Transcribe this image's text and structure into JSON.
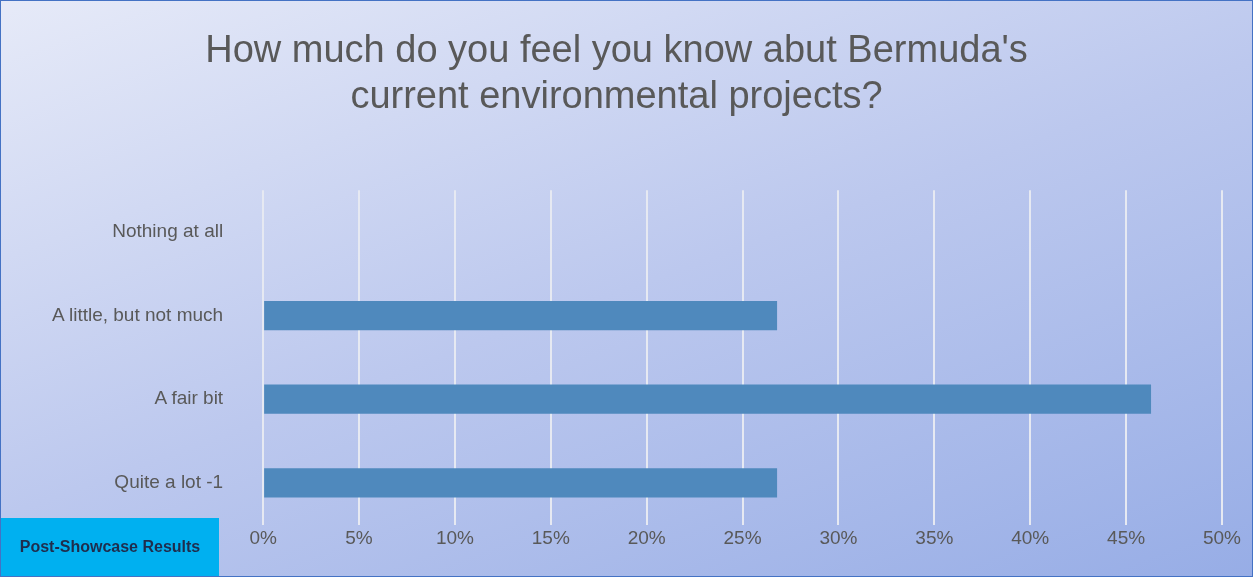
{
  "chart_data": {
    "type": "bar",
    "orientation": "horizontal",
    "title": "How much do you feel you know abut Bermuda's current environmental projects?",
    "categories": [
      "Nothing at all",
      "A little, but not much",
      "A fair bit",
      "Quite a lot -1"
    ],
    "values": [
      0,
      26.8,
      46.3,
      26.8
    ],
    "color": "#4f89bd",
    "xlim": [
      0,
      50
    ],
    "xticks": [
      {
        "value": 0,
        "label": "0%"
      },
      {
        "value": 5,
        "label": "5%"
      },
      {
        "value": 10,
        "label": "10%"
      },
      {
        "value": 15,
        "label": "15%"
      },
      {
        "value": 20,
        "label": "20%"
      },
      {
        "value": 25,
        "label": "25%"
      },
      {
        "value": 30,
        "label": "30%"
      },
      {
        "value": 35,
        "label": "35%"
      },
      {
        "value": 40,
        "label": "40%"
      },
      {
        "value": 45,
        "label": "45%"
      },
      {
        "value": 50,
        "label": "50%"
      }
    ],
    "grid": "x",
    "legend": false,
    "annotations": [
      "Post-Showcase Results"
    ]
  }
}
